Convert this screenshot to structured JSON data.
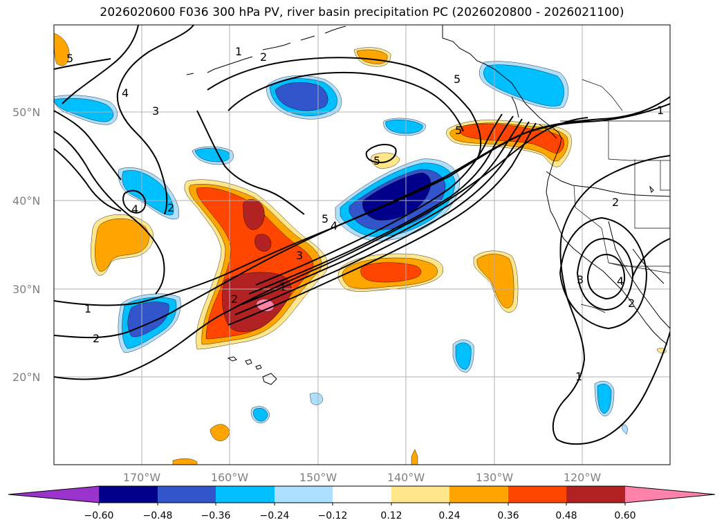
{
  "title": "2026020600 F036 300 hPa PV, river basin precipitation PC (2026020800 - 2026021100)",
  "colors": {
    "neg_060": "#9933CC",
    "neg_048": "#00008B",
    "neg_036": "#3355CC",
    "neg_024": "#00BFFF",
    "neg_012": "#ADDFFF",
    "zero": "#FFFFFF",
    "pos_012": "#FFE68A",
    "pos_024": "#FFA500",
    "pos_036": "#FF4500",
    "pos_048": "#B22222",
    "pos_060": "#FF82AB",
    "grid": "#B0B0B0",
    "coast": "#000000",
    "pv_contour": "#000000"
  },
  "axes": {
    "lat_labels": [
      "50°N",
      "40°N",
      "30°N",
      "20°N"
    ],
    "lon_labels": [
      "170°W",
      "160°W",
      "150°W",
      "140°W",
      "130°W",
      "120°W"
    ]
  },
  "colorbar": {
    "tick_labels": [
      "−0.60",
      "−0.48",
      "−0.36",
      "−0.24",
      "−0.12",
      "0.12",
      "0.24",
      "0.36",
      "0.48",
      "0.60"
    ]
  },
  "pv_contour_labels": [
    "1",
    "2",
    "3",
    "4",
    "5"
  ]
}
